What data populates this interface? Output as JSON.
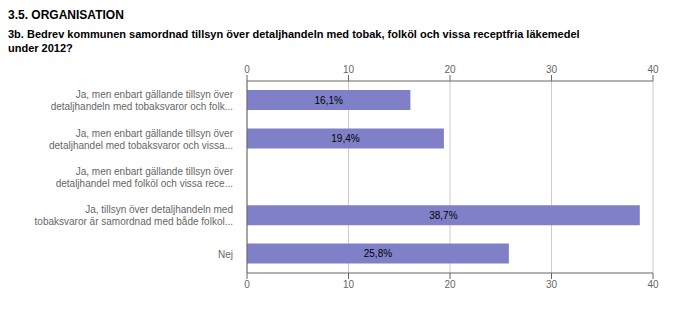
{
  "chart_data": {
    "type": "bar",
    "orientation": "horizontal",
    "title": "3.5. ORGANISATION",
    "subtitle": "3b. Bedrev kommunen samordnad tillsyn över detaljhandeln med tobak, folköl och vissa receptfria läkemedel\nunder 2012?",
    "categories": [
      "Ja, men enbart gällande tillsyn över\ndetaljhandeln med tobaksvaror och folk...",
      "Ja, men enbart gällande tillsyn över\ndetaljhandel med tobaksvaror och vissa...",
      "Ja, men enbart gällande tillsyn över\ndetaljhandel med folköl och vissa rece...",
      "Ja, tillsyn över detaljhandeln med\ntobaksvaror är samordnad med både folkol...",
      "Nej"
    ],
    "values": [
      16.1,
      19.4,
      0.0,
      38.7,
      25.8
    ],
    "value_labels": [
      "16,1%",
      "19,4%",
      null,
      "38,7%",
      "25,8%"
    ],
    "data_labels": true,
    "color": "#8080c8",
    "xlim": [
      0,
      40
    ],
    "xticks": [
      0,
      10,
      20,
      30,
      40
    ],
    "grid": true
  }
}
